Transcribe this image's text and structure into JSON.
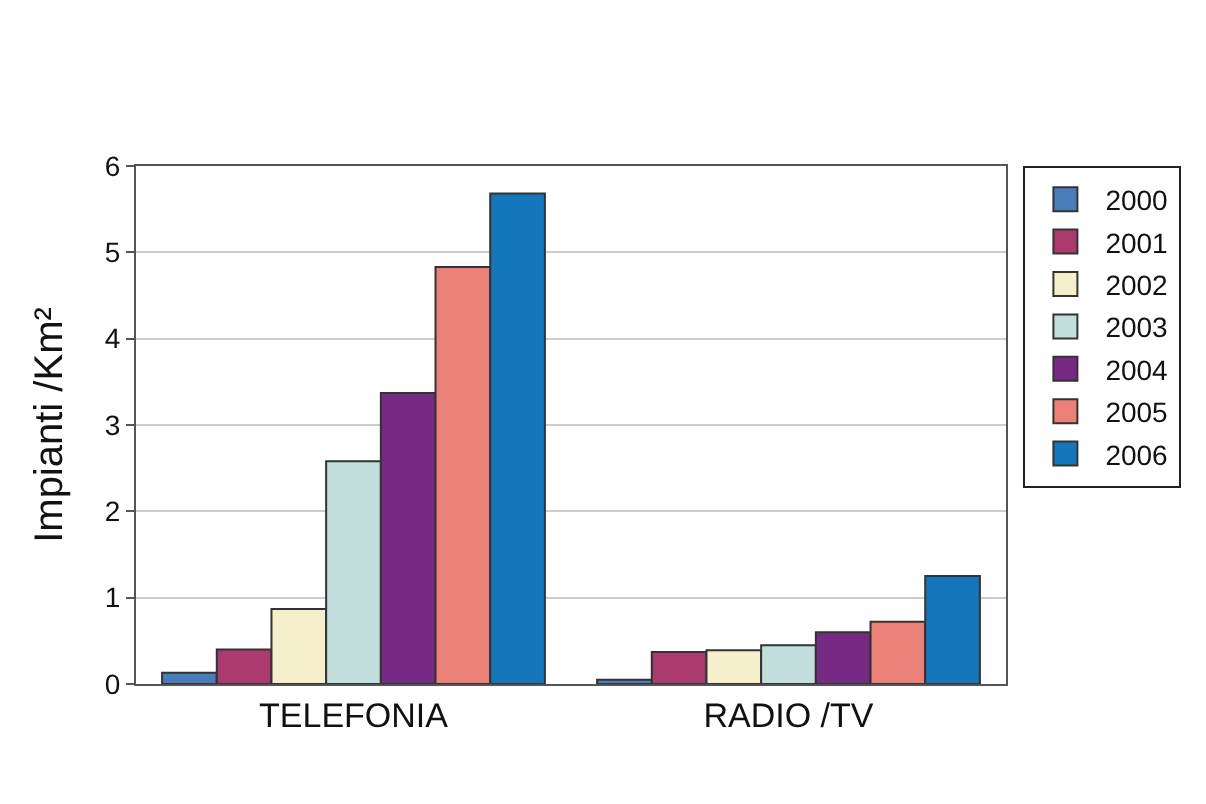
{
  "chart_data": {
    "type": "bar",
    "ylabel": "Impianti /Km²",
    "categories": [
      "TELEFONIA",
      "RADIO /TV"
    ],
    "series": [
      {
        "name": "2000",
        "color": "#4a7ebb",
        "values": [
          0.13,
          0.05
        ]
      },
      {
        "name": "2001",
        "color": "#ab3a6f",
        "values": [
          0.4,
          0.37
        ]
      },
      {
        "name": "2002",
        "color": "#f5efcb",
        "values": [
          0.87,
          0.39
        ]
      },
      {
        "name": "2003",
        "color": "#c2dfdd",
        "values": [
          2.58,
          0.45
        ]
      },
      {
        "name": "2004",
        "color": "#762a83",
        "values": [
          3.37,
          0.6
        ]
      },
      {
        "name": "2005",
        "color": "#ea8078",
        "values": [
          4.83,
          0.72
        ]
      },
      {
        "name": "2006",
        "color": "#1477bb",
        "values": [
          5.68,
          1.25
        ]
      }
    ],
    "ylim": [
      0,
      6
    ],
    "yticks": [
      0,
      1,
      2,
      3,
      4,
      5,
      6
    ],
    "grid": "y",
    "legend": "right"
  }
}
